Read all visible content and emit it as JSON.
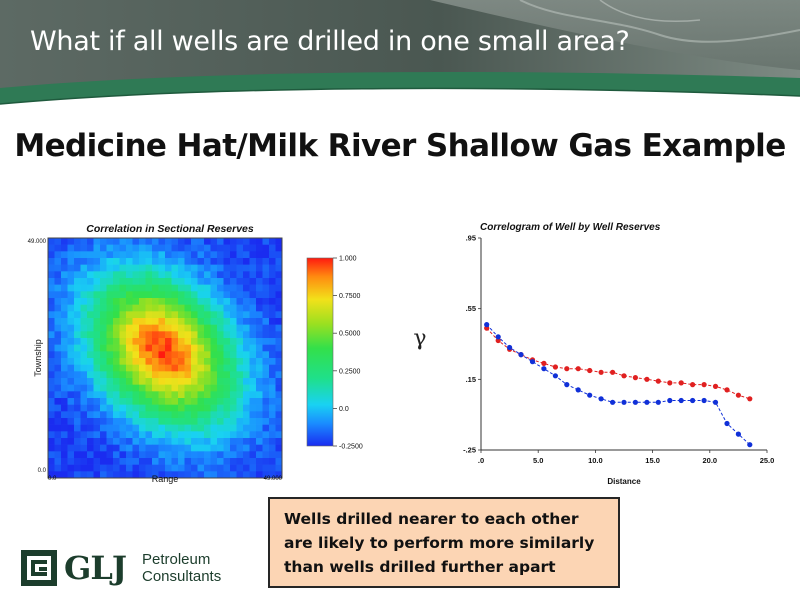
{
  "slide": {
    "banner_title": "What if all wells are drilled in one small area?",
    "title": "Medicine Hat/Milk River Shallow Gas Example",
    "note": {
      "line1": "Wells drilled nearer to each other",
      "line2": "are likely to perform more similarly",
      "line3": "than wells drilled further apart"
    },
    "logo": {
      "wordmark": "GLJ",
      "line1": "Petroleum",
      "line2": "Consultants"
    }
  },
  "colors": {
    "banner_dark": "#3f4a45",
    "banner_accent": "#2f7a55",
    "note_fill": "#fcd5b4",
    "logo_green": "#1c3d2c",
    "series_1": "#e02020",
    "series_2": "#1030d8"
  },
  "gamma_symbol": "γ",
  "chart_data": [
    {
      "type": "heatmap",
      "title": "Correlation in Sectional Reserves",
      "xlabel": "Range",
      "ylabel": "Township",
      "x_ticks": [
        "0.0",
        "49.000"
      ],
      "y_ticks": [
        "0.0",
        "49.000"
      ],
      "xlim": [
        0,
        49
      ],
      "ylim": [
        0,
        49
      ],
      "grid_cells": 36,
      "pattern": "elliptical peak near center, elongated from upper-left to lower-right",
      "peak_center": [
        24,
        26
      ],
      "peak_value": 1.0,
      "colorbar": {
        "range": [
          -0.25,
          1.0
        ],
        "ticks": [
          "1.000",
          "0.7500",
          "0.5000",
          "0.2500",
          "0.0",
          "-0.2500"
        ],
        "tick_values": [
          1.0,
          0.75,
          0.5,
          0.25,
          0.0,
          -0.25
        ]
      }
    },
    {
      "type": "line",
      "title": "Correlogram of Well by Well Reserves",
      "xlabel": "Distance",
      "ylabel": "",
      "xlim": [
        0,
        25
      ],
      "ylim": [
        -0.25,
        0.95
      ],
      "x_ticks": [
        ".0",
        "5.0",
        "10.0",
        "15.0",
        "20.0",
        "25.0"
      ],
      "x_tick_values": [
        0,
        5,
        10,
        15,
        20,
        25
      ],
      "y_ticks": [
        ".95",
        ".55",
        ".15",
        "-.25"
      ],
      "y_tick_values": [
        0.95,
        0.55,
        0.15,
        -0.25
      ],
      "series": [
        {
          "color": "#e02020",
          "x": [
            0.5,
            1.5,
            2.5,
            3.5,
            4.5,
            5.5,
            6.5,
            7.5,
            8.5,
            9.5,
            10.5,
            11.5,
            12.5,
            13.5,
            14.5,
            15.5,
            16.5,
            17.5,
            18.5,
            19.5,
            20.5,
            21.5,
            22.5,
            23.5
          ],
          "y": [
            0.44,
            0.37,
            0.32,
            0.29,
            0.26,
            0.24,
            0.22,
            0.21,
            0.21,
            0.2,
            0.19,
            0.19,
            0.17,
            0.16,
            0.15,
            0.14,
            0.13,
            0.13,
            0.12,
            0.12,
            0.11,
            0.09,
            0.06,
            0.04
          ]
        },
        {
          "color": "#1030d8",
          "x": [
            0.5,
            1.5,
            2.5,
            3.5,
            4.5,
            5.5,
            6.5,
            7.5,
            8.5,
            9.5,
            10.5,
            11.5,
            12.5,
            13.5,
            14.5,
            15.5,
            16.5,
            17.5,
            18.5,
            19.5,
            20.5,
            21.5,
            22.5,
            23.5
          ],
          "y": [
            0.46,
            0.39,
            0.33,
            0.29,
            0.25,
            0.21,
            0.17,
            0.12,
            0.09,
            0.06,
            0.04,
            0.02,
            0.02,
            0.02,
            0.02,
            0.02,
            0.03,
            0.03,
            0.03,
            0.03,
            0.02,
            -0.1,
            -0.16,
            -0.22
          ]
        }
      ]
    }
  ]
}
